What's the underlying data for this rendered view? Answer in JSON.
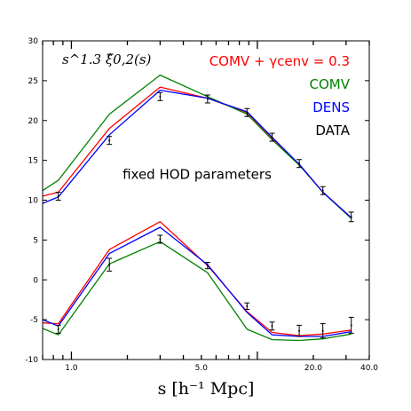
{
  "chart_data": {
    "type": "line",
    "xscale": "log",
    "xlim": [
      0.7,
      40.0
    ],
    "ylim": [
      -10,
      30
    ],
    "xlabel": "s [h⁻¹ Mpc]",
    "ylabel": "s^1.3 ξ̂0,2(s)",
    "x_tick_labels": [
      "1.0",
      "5.0",
      "20.0",
      "40.0"
    ],
    "x_tick_values": [
      1.0,
      5.0,
      20.0,
      40.0
    ],
    "y_tick_values": [
      -10,
      -5,
      0,
      5,
      10,
      15,
      20,
      25,
      30
    ],
    "annotation": "fixed HOD parameters",
    "legend_position": "top-right",
    "legend": [
      {
        "label": "COMV + γcenv = 0.3",
        "color": "#ff0000"
      },
      {
        "label": "COMV",
        "color": "#008000"
      },
      {
        "label": "DENS",
        "color": "#0000ff"
      },
      {
        "label": "DATA",
        "color": "#000000"
      }
    ],
    "series": [
      {
        "name": "COMV + γcenv = 0.3",
        "color": "#ff0000",
        "role": "monopole",
        "x": [
          0.7,
          0.85,
          1.6,
          3.0,
          5.4,
          8.8,
          12.0,
          16.8,
          22.5,
          32.0
        ],
        "y": [
          10.5,
          11.0,
          19.0,
          24.2,
          22.8,
          21.0,
          17.8,
          14.5,
          11.0,
          7.8
        ]
      },
      {
        "name": "COMV",
        "color": "#008000",
        "role": "monopole",
        "x": [
          0.7,
          0.85,
          1.6,
          3.0,
          5.4,
          8.8,
          12.0,
          16.8,
          22.5,
          32.0
        ],
        "y": [
          11.2,
          12.5,
          20.8,
          25.7,
          23.0,
          20.8,
          17.6,
          14.4,
          11.0,
          7.7
        ]
      },
      {
        "name": "DENS",
        "color": "#0000ff",
        "role": "monopole",
        "x": [
          0.7,
          0.85,
          1.6,
          3.0,
          5.4,
          8.8,
          12.0,
          16.8,
          22.5,
          32.0
        ],
        "y": [
          9.6,
          10.4,
          18.2,
          23.8,
          22.8,
          21.1,
          17.9,
          14.5,
          11.0,
          7.8
        ]
      },
      {
        "name": "COMV + γcenv = 0.3",
        "color": "#ff0000",
        "role": "quadrupole",
        "x": [
          0.7,
          0.85,
          1.6,
          3.0,
          5.4,
          8.8,
          12.0,
          16.8,
          22.5,
          32.0
        ],
        "y": [
          -5.4,
          -5.5,
          3.8,
          7.3,
          1.8,
          -4.0,
          -6.6,
          -7.0,
          -6.8,
          -6.3
        ]
      },
      {
        "name": "COMV",
        "color": "#008000",
        "role": "quadrupole",
        "x": [
          0.7,
          0.85,
          1.6,
          3.0,
          5.4,
          8.8,
          12.0,
          16.8,
          22.5,
          32.0
        ],
        "y": [
          -6.1,
          -6.9,
          2.0,
          4.8,
          0.9,
          -6.2,
          -7.5,
          -7.6,
          -7.4,
          -6.8
        ]
      },
      {
        "name": "DENS",
        "color": "#0000ff",
        "role": "quadrupole",
        "x": [
          0.7,
          0.85,
          1.6,
          3.0,
          5.4,
          8.8,
          12.0,
          16.8,
          22.5,
          32.0
        ],
        "y": [
          -5.0,
          -5.8,
          3.3,
          6.6,
          1.9,
          -4.1,
          -6.9,
          -7.1,
          -7.1,
          -6.5
        ]
      }
    ],
    "data_points": {
      "name": "DATA",
      "color": "#000000",
      "monopole": [
        {
          "x": 0.85,
          "y": 10.5,
          "err": 0.5
        },
        {
          "x": 1.6,
          "y": 17.5,
          "err": 0.5
        },
        {
          "x": 3.0,
          "y": 23.0,
          "err": 0.5
        },
        {
          "x": 5.4,
          "y": 22.7,
          "err": 0.5
        },
        {
          "x": 8.8,
          "y": 21.0,
          "err": 0.5
        },
        {
          "x": 12.0,
          "y": 17.9,
          "err": 0.5
        },
        {
          "x": 16.8,
          "y": 14.6,
          "err": 0.5
        },
        {
          "x": 22.5,
          "y": 11.2,
          "err": 0.5
        },
        {
          "x": 32.0,
          "y": 7.9,
          "err": 0.6
        }
      ],
      "quadrupole": [
        {
          "x": 0.85,
          "y": -6.2,
          "err": 0.5
        },
        {
          "x": 1.6,
          "y": 1.9,
          "err": 0.8
        },
        {
          "x": 3.0,
          "y": 5.1,
          "err": 0.5
        },
        {
          "x": 5.4,
          "y": 1.8,
          "err": 0.4
        },
        {
          "x": 8.8,
          "y": -3.3,
          "err": 0.4
        },
        {
          "x": 12.0,
          "y": -5.8,
          "err": 0.5
        },
        {
          "x": 16.8,
          "y": -6.4,
          "err": 0.7
        },
        {
          "x": 22.5,
          "y": -6.4,
          "err": 0.9
        },
        {
          "x": 32.0,
          "y": -5.7,
          "err": 1.0
        }
      ]
    }
  }
}
